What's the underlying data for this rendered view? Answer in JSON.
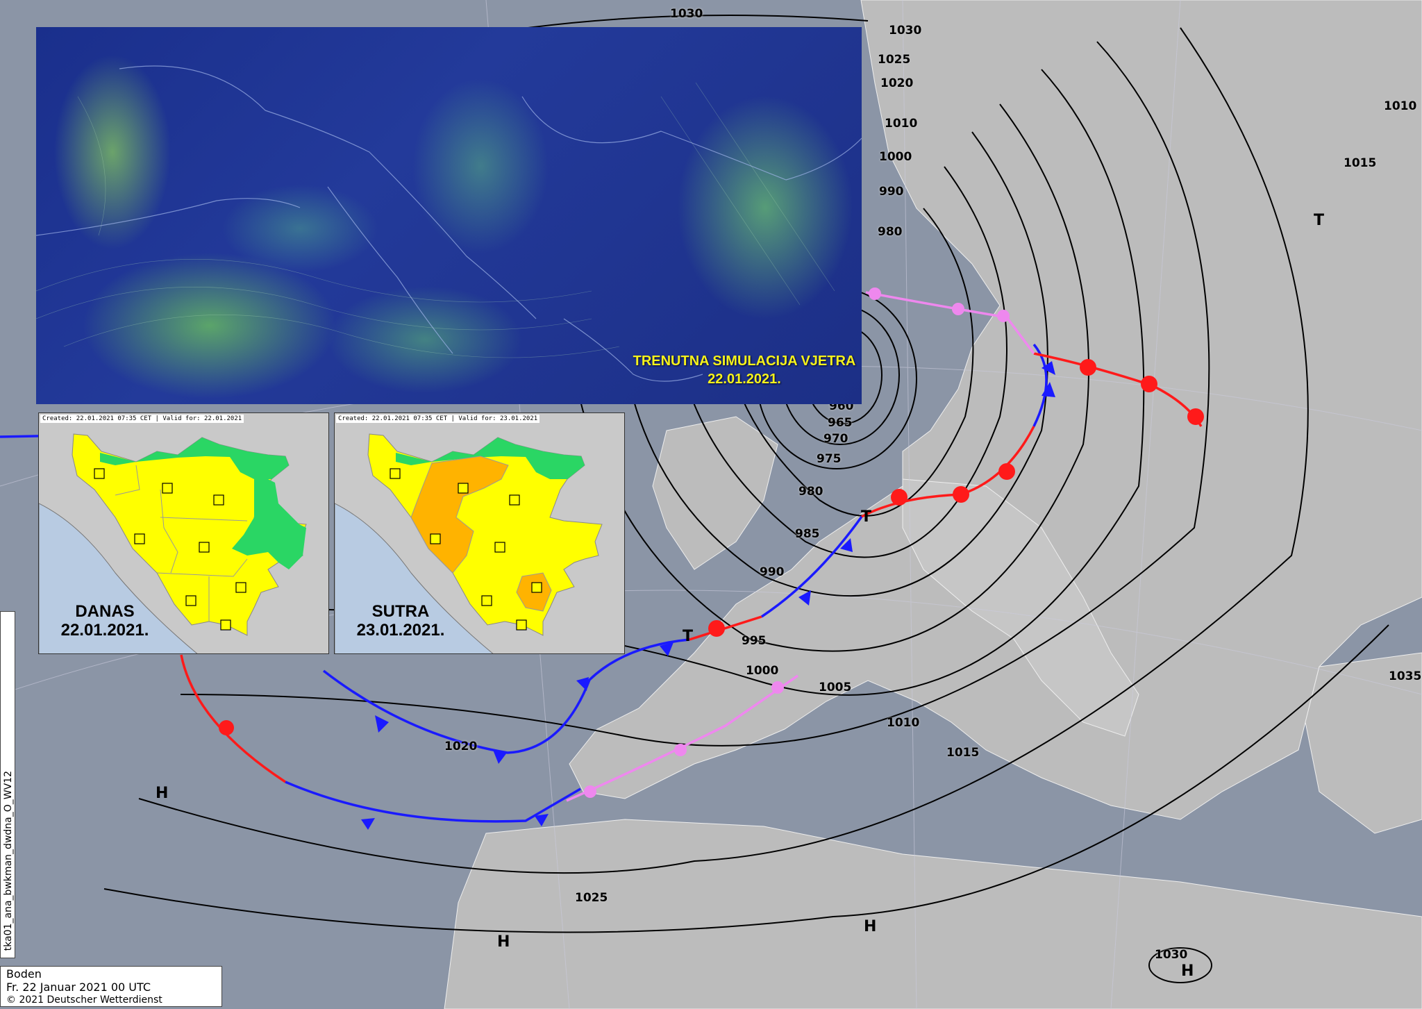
{
  "legend": {
    "layer": "Boden",
    "datetime": "Fr. 22 Januar 2021 00 UTC",
    "copyright": "© 2021 Deutscher Wetterdienst"
  },
  "product_id": "tka01_ana_bwkman_dwdna_O_WV12",
  "isobar_labels": [
    "1030",
    "1030",
    "1025",
    "1020",
    "1010",
    "1000",
    "990",
    "980",
    "960",
    "965",
    "970",
    "975",
    "980",
    "985",
    "990",
    "995",
    "1000",
    "1005",
    "1010",
    "1015",
    "1020",
    "1025",
    "1030",
    "1035",
    "1010",
    "1015"
  ],
  "pressure_centers": [
    "H",
    "H",
    "H",
    "H",
    "T",
    "T",
    "T"
  ],
  "colors": {
    "warm_front": "#ff1a1a",
    "cold_front": "#1a1aff",
    "occlusion": "#ee88ee",
    "sea": "#8b95a6",
    "land": "#b9b9b9"
  },
  "wind_inset": {
    "title": "TRENUTNA SIMULACIJA VJETRA",
    "date": "22.01.2021."
  },
  "warnings": [
    {
      "created": "Created: 22.01.2021 07:35 CET | Valid for: 22.01.2021",
      "label": "DANAS",
      "date": "22.01.2021.",
      "levels": [
        "yellow",
        "green"
      ]
    },
    {
      "created": "Created: 22.01.2021 07:35 CET | Valid for: 23.01.2021",
      "label": "SUTRA",
      "date": "23.01.2021.",
      "levels": [
        "yellow",
        "orange",
        "green"
      ]
    }
  ]
}
